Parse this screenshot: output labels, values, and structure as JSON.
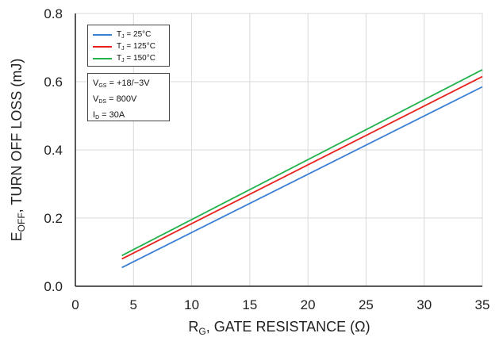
{
  "chart_data": {
    "type": "line",
    "x": [
      4,
      35
    ],
    "series": [
      {
        "name_prefix": "T",
        "name_sub": "J",
        "name_suffix": " = 25°C",
        "values": [
          0.055,
          0.585
        ],
        "color": "#3a7fd5"
      },
      {
        "name_prefix": "T",
        "name_sub": "J",
        "name_suffix": " = 125°C",
        "values": [
          0.08,
          0.615
        ],
        "color": "#e8211d"
      },
      {
        "name_prefix": "T",
        "name_sub": "J",
        "name_suffix": " = 150°C",
        "values": [
          0.09,
          0.635
        ],
        "color": "#21b24b"
      }
    ],
    "xlim": [
      0,
      35
    ],
    "ylim": [
      0,
      0.8
    ],
    "xticks": [
      "0",
      "5",
      "10",
      "15",
      "20",
      "25",
      "30",
      "35"
    ],
    "yticks": [
      "0.0",
      "0.2",
      "0.4",
      "0.6",
      "0.8"
    ],
    "xlabel": {
      "prefix": "R",
      "sub": "G",
      "suffix": ", GATE RESISTANCE  (Ω)"
    },
    "ylabel": {
      "prefix": "E",
      "sub": "OFF",
      "suffix": ",  TURN OFF LOSS  (mJ)"
    },
    "grid": true,
    "legend_position": "top-left",
    "conditions": [
      {
        "prefix": "V",
        "sub": "GS",
        "suffix": " = +18/−3V"
      },
      {
        "prefix": "V",
        "sub": "DS",
        "suffix": " = 800V"
      },
      {
        "prefix": "I",
        "sub": "D",
        "suffix": " = 30A"
      }
    ]
  }
}
